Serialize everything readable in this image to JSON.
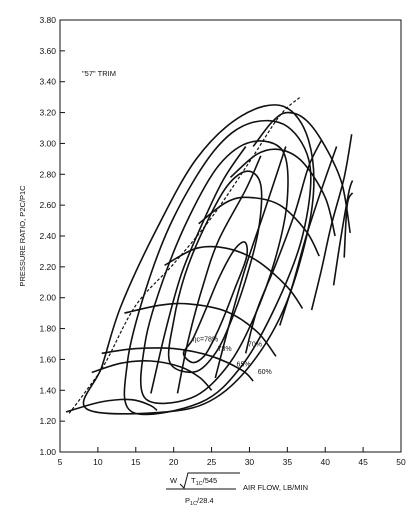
{
  "chart_data": {
    "type": "compressor-map",
    "title": "\"57\" TRIM",
    "ylabel": "PRESSURE RATIO, P2C/P1C",
    "xlabel_unit": "AIR FLOW, LB/MIN",
    "xlabel_formula": {
      "numerator_w": "W",
      "numerator_t": "T",
      "numerator_t_sub": "1C",
      "numerator_rest": "/545",
      "denominator_p": "P",
      "denominator_sub": "1C",
      "denominator_rest": "/28.4"
    },
    "xlim": [
      5,
      50
    ],
    "ylim": [
      1.0,
      3.8
    ],
    "x_ticks": [
      5,
      10,
      15,
      20,
      25,
      30,
      35,
      40,
      45,
      50
    ],
    "x_tick_labels": [
      "5",
      "10",
      "15",
      "20",
      "25",
      "30",
      "35",
      "40",
      "45",
      "50"
    ],
    "y_ticks": [
      1.0,
      1.2,
      1.4,
      1.6,
      1.8,
      2.0,
      2.2,
      2.4,
      2.6,
      2.8,
      3.0,
      3.2,
      3.4,
      3.6,
      3.8
    ],
    "y_tick_labels": [
      "1.00",
      "1.20",
      "1.40",
      "1.60",
      "1.80",
      "2.00",
      "2.20",
      "2.40",
      "2.60",
      "2.80",
      "3.00",
      "3.20",
      "3.40",
      "3.60",
      "3.80"
    ],
    "efficiency_labels": [
      {
        "text": "ηc=78%",
        "x": 22.5,
        "y": 1.715
      },
      {
        "text": "73%",
        "x": 25.8,
        "y": 1.655
      },
      {
        "text": "70%",
        "x": 29.8,
        "y": 1.685
      },
      {
        "text": "65%",
        "x": 28.3,
        "y": 1.555
      },
      {
        "text": "60%",
        "x": 31.1,
        "y": 1.505
      }
    ],
    "surge_line": [
      [
        6.2,
        1.25
      ],
      [
        8.5,
        1.4
      ],
      [
        11,
        1.58
      ],
      [
        15,
        1.95
      ],
      [
        20,
        2.22
      ],
      [
        25,
        2.52
      ],
      [
        30,
        2.88
      ],
      [
        34,
        3.18
      ],
      [
        36.7,
        3.3
      ]
    ],
    "speed_lines": [
      [
        [
          5.8,
          1.26
        ],
        [
          10,
          1.32
        ],
        [
          13,
          1.34
        ],
        [
          15,
          1.335
        ],
        [
          17,
          1.3
        ],
        [
          17.8,
          1.27
        ]
      ],
      [
        [
          9.2,
          1.515
        ],
        [
          13,
          1.575
        ],
        [
          17,
          1.59
        ],
        [
          21,
          1.55
        ],
        [
          23.5,
          1.48
        ],
        [
          25,
          1.4
        ]
      ],
      [
        [
          10.5,
          1.64
        ],
        [
          15,
          1.67
        ],
        [
          20,
          1.67
        ],
        [
          25,
          1.62
        ],
        [
          29,
          1.53
        ],
        [
          30.5,
          1.46
        ]
      ],
      [
        [
          13.5,
          1.9
        ],
        [
          18,
          1.95
        ],
        [
          22,
          1.96
        ],
        [
          27,
          1.91
        ],
        [
          31,
          1.78
        ],
        [
          33.5,
          1.62
        ]
      ],
      [
        [
          18.8,
          2.21
        ],
        [
          23,
          2.32
        ],
        [
          27,
          2.32
        ],
        [
          31,
          2.24
        ],
        [
          35,
          2.07
        ],
        [
          37,
          1.93
        ]
      ],
      [
        [
          23.3,
          2.48
        ],
        [
          27,
          2.62
        ],
        [
          30,
          2.65
        ],
        [
          34,
          2.6
        ],
        [
          37.5,
          2.43
        ],
        [
          39.2,
          2.27
        ]
      ],
      [
        [
          27.5,
          2.78
        ],
        [
          31,
          2.93
        ],
        [
          34,
          2.96
        ],
        [
          37,
          2.88
        ],
        [
          40,
          2.65
        ],
        [
          41.3,
          2.4
        ]
      ],
      [
        [
          30.5,
          2.98
        ],
        [
          33,
          3.14
        ],
        [
          35,
          3.2
        ],
        [
          37.5,
          3.15
        ],
        [
          40,
          2.98
        ],
        [
          42.2,
          2.74
        ],
        [
          43.3,
          2.42
        ]
      ]
    ],
    "choke_lines": [
      [
        [
          17,
          1.38
        ],
        [
          19,
          1.8
        ],
        [
          21,
          2.15
        ],
        [
          23.5,
          2.45
        ],
        [
          26.5,
          2.76
        ],
        [
          29.5,
          2.98
        ]
      ],
      [
        [
          20.5,
          1.38
        ],
        [
          22,
          1.74
        ],
        [
          24,
          2.1
        ],
        [
          26,
          2.38
        ],
        [
          29.5,
          2.7
        ],
        [
          31.5,
          2.92
        ]
      ],
      [
        [
          25.5,
          1.48
        ],
        [
          27.3,
          1.82
        ],
        [
          29.5,
          2.2
        ],
        [
          31.7,
          2.52
        ],
        [
          33.6,
          2.8
        ],
        [
          34.8,
          2.98
        ]
      ],
      [
        [
          29.5,
          1.64
        ],
        [
          31,
          1.92
        ],
        [
          33.5,
          2.22
        ],
        [
          36,
          2.55
        ],
        [
          37.8,
          2.85
        ],
        [
          39.5,
          3.02
        ]
      ],
      [
        [
          34,
          1.82
        ],
        [
          35.8,
          2.1
        ],
        [
          37.5,
          2.4
        ],
        [
          39.5,
          2.7
        ],
        [
          41.5,
          2.98
        ]
      ],
      [
        [
          38.2,
          1.92
        ],
        [
          39.5,
          2.18
        ],
        [
          40.8,
          2.47
        ],
        [
          42.5,
          2.78
        ],
        [
          43.5,
          3.06
        ]
      ],
      [
        [
          41.1,
          2.08
        ],
        [
          42,
          2.37
        ],
        [
          43.1,
          2.68
        ],
        [
          43.6,
          2.76
        ]
      ],
      [
        [
          42.5,
          2.26
        ],
        [
          42.9,
          2.6
        ],
        [
          43.6,
          2.68
        ]
      ]
    ],
    "efficiency_islands": [
      [
        [
          21.3,
          1.64
        ],
        [
          22.5,
          1.73
        ],
        [
          24.2,
          1.92
        ],
        [
          26,
          2.13
        ],
        [
          28,
          2.31
        ],
        [
          29.4,
          2.36
        ],
        [
          29.6,
          2.26
        ],
        [
          28,
          2.05
        ],
        [
          26.5,
          1.86
        ],
        [
          25.2,
          1.72
        ],
        [
          24,
          1.62
        ],
        [
          22.5,
          1.58
        ],
        [
          21.3,
          1.64
        ]
      ],
      [
        [
          19.5,
          1.58
        ],
        [
          20,
          1.85
        ],
        [
          21.5,
          2.15
        ],
        [
          24,
          2.45
        ],
        [
          27,
          2.72
        ],
        [
          29.7,
          2.82
        ],
        [
          31.5,
          2.73
        ],
        [
          31.2,
          2.44
        ],
        [
          29.4,
          2.1
        ],
        [
          27.5,
          1.84
        ],
        [
          25.5,
          1.64
        ],
        [
          22.8,
          1.52
        ],
        [
          19.5,
          1.58
        ]
      ],
      [
        [
          16.2,
          1.35
        ],
        [
          16.2,
          1.7
        ],
        [
          18.5,
          2.1
        ],
        [
          22,
          2.52
        ],
        [
          26,
          2.86
        ],
        [
          30.3,
          3.01
        ],
        [
          34.4,
          2.95
        ],
        [
          35,
          2.64
        ],
        [
          33.4,
          2.25
        ],
        [
          30.5,
          1.86
        ],
        [
          27,
          1.55
        ],
        [
          22.3,
          1.35
        ],
        [
          16.2,
          1.35
        ]
      ],
      [
        [
          14.5,
          1.26
        ],
        [
          13.9,
          1.58
        ],
        [
          16.3,
          2.05
        ],
        [
          20,
          2.52
        ],
        [
          25.3,
          2.95
        ],
        [
          30,
          3.13
        ],
        [
          35,
          3.11
        ],
        [
          38,
          2.85
        ],
        [
          37,
          2.4
        ],
        [
          33.5,
          1.95
        ],
        [
          29,
          1.56
        ],
        [
          23.5,
          1.32
        ],
        [
          14.5,
          1.26
        ]
      ],
      [
        [
          8.5,
          1.28
        ],
        [
          10.5,
          1.55
        ],
        [
          13,
          1.94
        ],
        [
          17.5,
          2.42
        ],
        [
          23,
          2.9
        ],
        [
          29,
          3.18
        ],
        [
          34.5,
          3.24
        ],
        [
          37.8,
          3.02
        ],
        [
          38.3,
          2.6
        ],
        [
          35.3,
          2.02
        ],
        [
          31,
          1.62
        ],
        [
          25.5,
          1.35
        ],
        [
          19,
          1.26
        ],
        [
          8.5,
          1.28
        ]
      ]
    ]
  }
}
